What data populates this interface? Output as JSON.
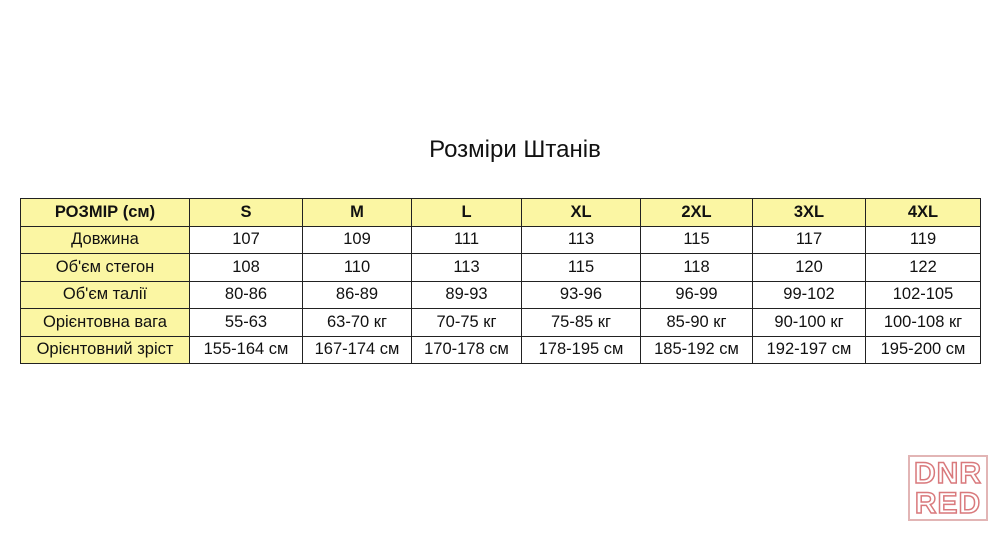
{
  "title": "Розміри Штанів",
  "table": {
    "header": [
      "РОЗМІР (см)",
      "S",
      "M",
      "L",
      "XL",
      "2XL",
      "3XL",
      "4XL"
    ],
    "rows": [
      [
        "Довжина",
        "107",
        "109",
        "111",
        "113",
        "115",
        "117",
        "119"
      ],
      [
        "Об'єм стегон",
        "108",
        "110",
        "113",
        "115",
        "118",
        "120",
        "122"
      ],
      [
        "Об'єм талії",
        "80-86",
        "86-89",
        "89-93",
        "93-96",
        "96-99",
        "99-102",
        "102-105"
      ],
      [
        "Орієнтовна вага",
        "55-63",
        "63-70 кг",
        "70-75 кг",
        "75-85 кг",
        "85-90 кг",
        "90-100 кг",
        "100-108 кг"
      ],
      [
        "Орієнтовний зріст",
        "155-164 см",
        "167-174 см",
        "170-178 см",
        "178-195 см",
        "185-192 см",
        "192-197 см",
        "195-200 см"
      ]
    ]
  },
  "watermark": {
    "line1": "DNR",
    "line2": "RED"
  }
}
